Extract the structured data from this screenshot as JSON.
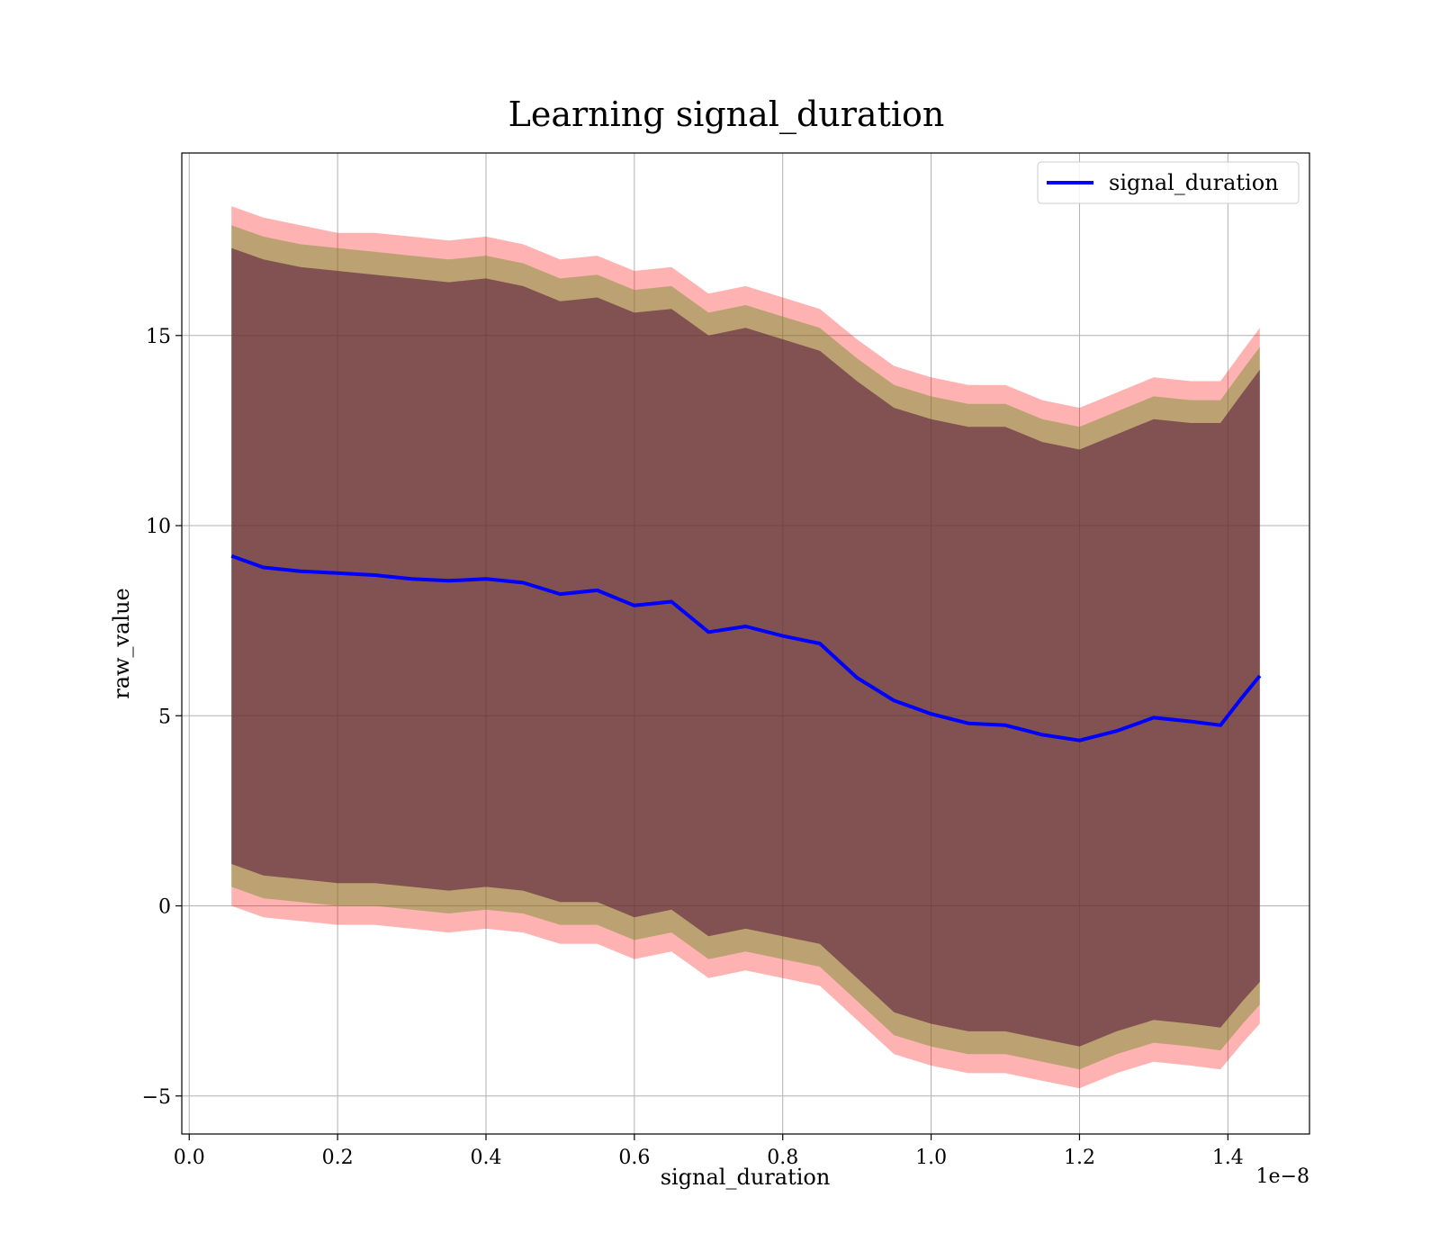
{
  "chart_data": {
    "type": "line",
    "title": "Learning signal_duration",
    "xlabel": "signal_duration",
    "ylabel": "raw_value",
    "x_offset_text": "1e−8",
    "xlim": [
      -0.01,
      1.51
    ],
    "ylim": [
      -6.0,
      19.8
    ],
    "x_ticks": [
      0.0,
      0.2,
      0.4,
      0.6,
      0.8,
      1.0,
      1.2,
      1.4
    ],
    "x_tick_labels": [
      "0.0",
      "0.2",
      "0.4",
      "0.6",
      "0.8",
      "1.0",
      "1.2",
      "1.4"
    ],
    "y_ticks": [
      -5,
      0,
      5,
      10,
      15
    ],
    "y_tick_labels": [
      "−5",
      "0",
      "5",
      "10",
      "15"
    ],
    "grid": true,
    "legend": {
      "position": "top-right",
      "entries": [
        "signal_duration"
      ]
    },
    "colors": {
      "line": "#0000ff",
      "band_outer": "#ff0000",
      "band_mid": "#6b8e23",
      "band_inner": "#5a1c3c"
    },
    "x": [
      0.057,
      0.1,
      0.15,
      0.2,
      0.25,
      0.3,
      0.35,
      0.4,
      0.45,
      0.5,
      0.55,
      0.6,
      0.65,
      0.7,
      0.75,
      0.8,
      0.85,
      0.9,
      0.95,
      1.0,
      1.05,
      1.1,
      1.15,
      1.2,
      1.25,
      1.3,
      1.35,
      1.39,
      1.42,
      1.443
    ],
    "series": [
      {
        "name": "signal_duration",
        "values": [
          9.2,
          8.9,
          8.8,
          8.75,
          8.7,
          8.6,
          8.55,
          8.6,
          8.5,
          8.2,
          8.3,
          7.9,
          8.0,
          7.2,
          7.35,
          7.1,
          6.9,
          6.0,
          5.4,
          5.05,
          4.8,
          4.75,
          4.5,
          4.35,
          4.6,
          4.95,
          4.85,
          4.75,
          5.5,
          6.05
        ]
      }
    ],
    "bands": [
      {
        "level": "outer",
        "upper": [
          18.4,
          18.1,
          17.9,
          17.7,
          17.7,
          17.6,
          17.5,
          17.6,
          17.4,
          17.0,
          17.1,
          16.7,
          16.8,
          16.1,
          16.3,
          16.0,
          15.7,
          14.9,
          14.2,
          13.9,
          13.7,
          13.7,
          13.3,
          13.1,
          13.5,
          13.9,
          13.8,
          13.8,
          14.6,
          15.2
        ],
        "lower": [
          0.0,
          -0.3,
          -0.4,
          -0.5,
          -0.5,
          -0.6,
          -0.7,
          -0.6,
          -0.7,
          -1.0,
          -1.0,
          -1.4,
          -1.2,
          -1.9,
          -1.7,
          -1.9,
          -2.1,
          -3.0,
          -3.9,
          -4.2,
          -4.4,
          -4.4,
          -4.6,
          -4.8,
          -4.4,
          -4.1,
          -4.2,
          -4.3,
          -3.6,
          -3.1
        ]
      },
      {
        "level": "mid",
        "upper": [
          17.9,
          17.6,
          17.4,
          17.3,
          17.2,
          17.1,
          17.0,
          17.1,
          16.9,
          16.5,
          16.6,
          16.2,
          16.3,
          15.6,
          15.8,
          15.5,
          15.2,
          14.4,
          13.7,
          13.4,
          13.2,
          13.2,
          12.8,
          12.6,
          13.0,
          13.4,
          13.3,
          13.3,
          14.1,
          14.7
        ],
        "lower": [
          0.5,
          0.2,
          0.1,
          0.0,
          0.0,
          -0.1,
          -0.2,
          -0.1,
          -0.2,
          -0.5,
          -0.5,
          -0.9,
          -0.7,
          -1.4,
          -1.2,
          -1.4,
          -1.6,
          -2.5,
          -3.4,
          -3.7,
          -3.9,
          -3.9,
          -4.1,
          -4.3,
          -3.9,
          -3.6,
          -3.7,
          -3.8,
          -3.1,
          -2.6
        ]
      },
      {
        "level": "inner",
        "upper": [
          17.3,
          17.0,
          16.8,
          16.7,
          16.6,
          16.5,
          16.4,
          16.5,
          16.3,
          15.9,
          16.0,
          15.6,
          15.7,
          15.0,
          15.2,
          14.9,
          14.6,
          13.8,
          13.1,
          12.8,
          12.6,
          12.6,
          12.2,
          12.0,
          12.4,
          12.8,
          12.7,
          12.7,
          13.5,
          14.1
        ],
        "lower": [
          1.1,
          0.8,
          0.7,
          0.6,
          0.6,
          0.5,
          0.4,
          0.5,
          0.4,
          0.1,
          0.1,
          -0.3,
          -0.1,
          -0.8,
          -0.6,
          -0.8,
          -1.0,
          -1.9,
          -2.8,
          -3.1,
          -3.3,
          -3.3,
          -3.5,
          -3.7,
          -3.3,
          -3.0,
          -3.1,
          -3.2,
          -2.5,
          -2.0
        ]
      }
    ]
  }
}
